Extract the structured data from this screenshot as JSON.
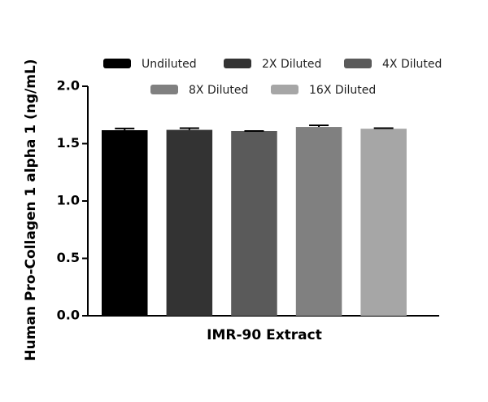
{
  "chart_data": {
    "type": "bar",
    "ylabel": "Human Pro-Collagen 1 alpha 1 (ng/mL)",
    "categories": [
      "IMR-90 Extract"
    ],
    "series": [
      {
        "name": "Undiluted",
        "color": "#000000",
        "values": [
          1.617
        ],
        "errors": [
          0.015
        ]
      },
      {
        "name": "2X Diluted",
        "color": "#333333",
        "values": [
          1.62
        ],
        "errors": [
          0.015
        ]
      },
      {
        "name": "4X Diluted",
        "color": "#5a5a5a",
        "values": [
          1.61
        ],
        "errors": [
          0
        ]
      },
      {
        "name": "8X Diluted",
        "color": "#808080",
        "values": [
          1.645
        ],
        "errors": [
          0.015
        ]
      },
      {
        "name": "16X Diluted",
        "color": "#a6a6a6",
        "values": [
          1.63
        ],
        "errors": [
          0.005
        ]
      }
    ],
    "ylim": [
      0,
      2
    ],
    "yticks": [
      {
        "value": 0,
        "label": "0.0"
      },
      0.5,
      {
        "value": 1,
        "label": "1.0"
      },
      1.5,
      {
        "value": 2,
        "label": "2.0"
      }
    ]
  }
}
